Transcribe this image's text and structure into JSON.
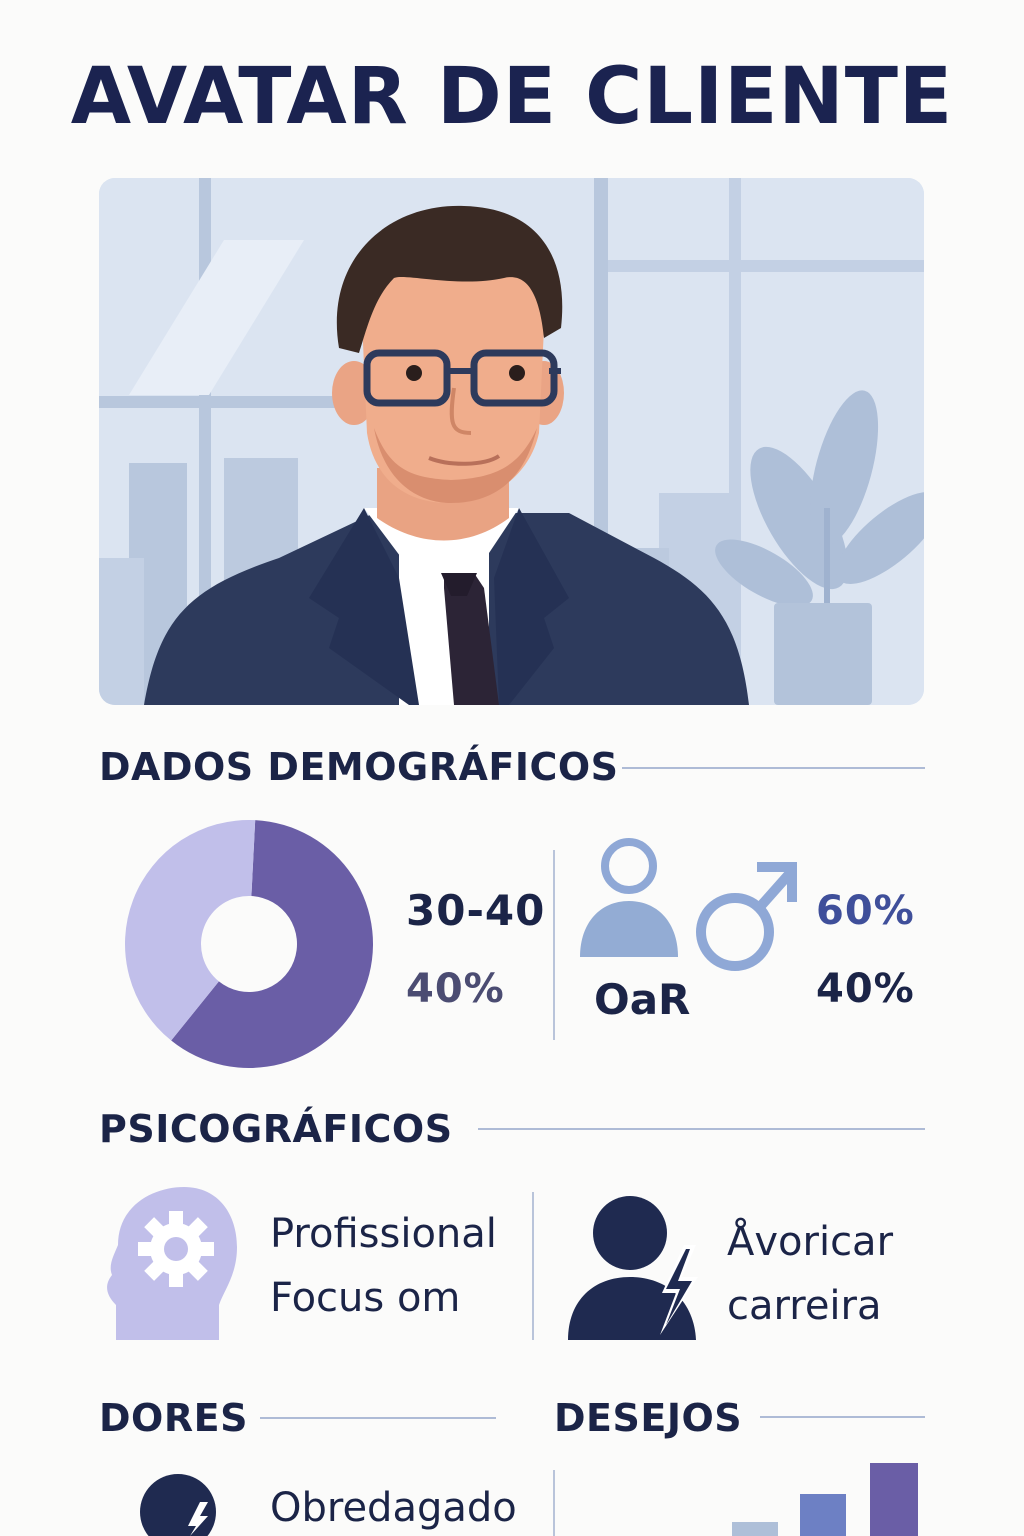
{
  "title": "AVATAR DE CLIENTE",
  "sections": {
    "demographics": "DADOS DEMOGRÁFICOS",
    "psychographics": "PSICOGRÁFICOS",
    "pains": "DORES",
    "desires": "DESEJOS"
  },
  "demographics": {
    "age_range": "30-40",
    "age_share": "40%",
    "person_label": "OaR",
    "male_share": "60%",
    "other_share": "40%",
    "donut": {
      "segments": [
        0.6,
        0.4
      ],
      "colors": [
        "#6a5ea6",
        "#c1bfea"
      ]
    }
  },
  "psychographics": {
    "left_lines": [
      "Profissional",
      "Focus om"
    ],
    "right_lines": [
      "Åvoricar",
      "carreira"
    ]
  },
  "pains": {
    "item": "Obredagado"
  },
  "colors": {
    "navy": "#1b2350",
    "purple": "#6a5ea6",
    "lavender": "#c1bfea",
    "blue": "#8fa8d6",
    "suit": "#2d3a5c"
  },
  "icons": [
    "head-gear-icon",
    "person-bolt-icon",
    "person-icon",
    "male-symbol-icon",
    "bolt-icon"
  ]
}
